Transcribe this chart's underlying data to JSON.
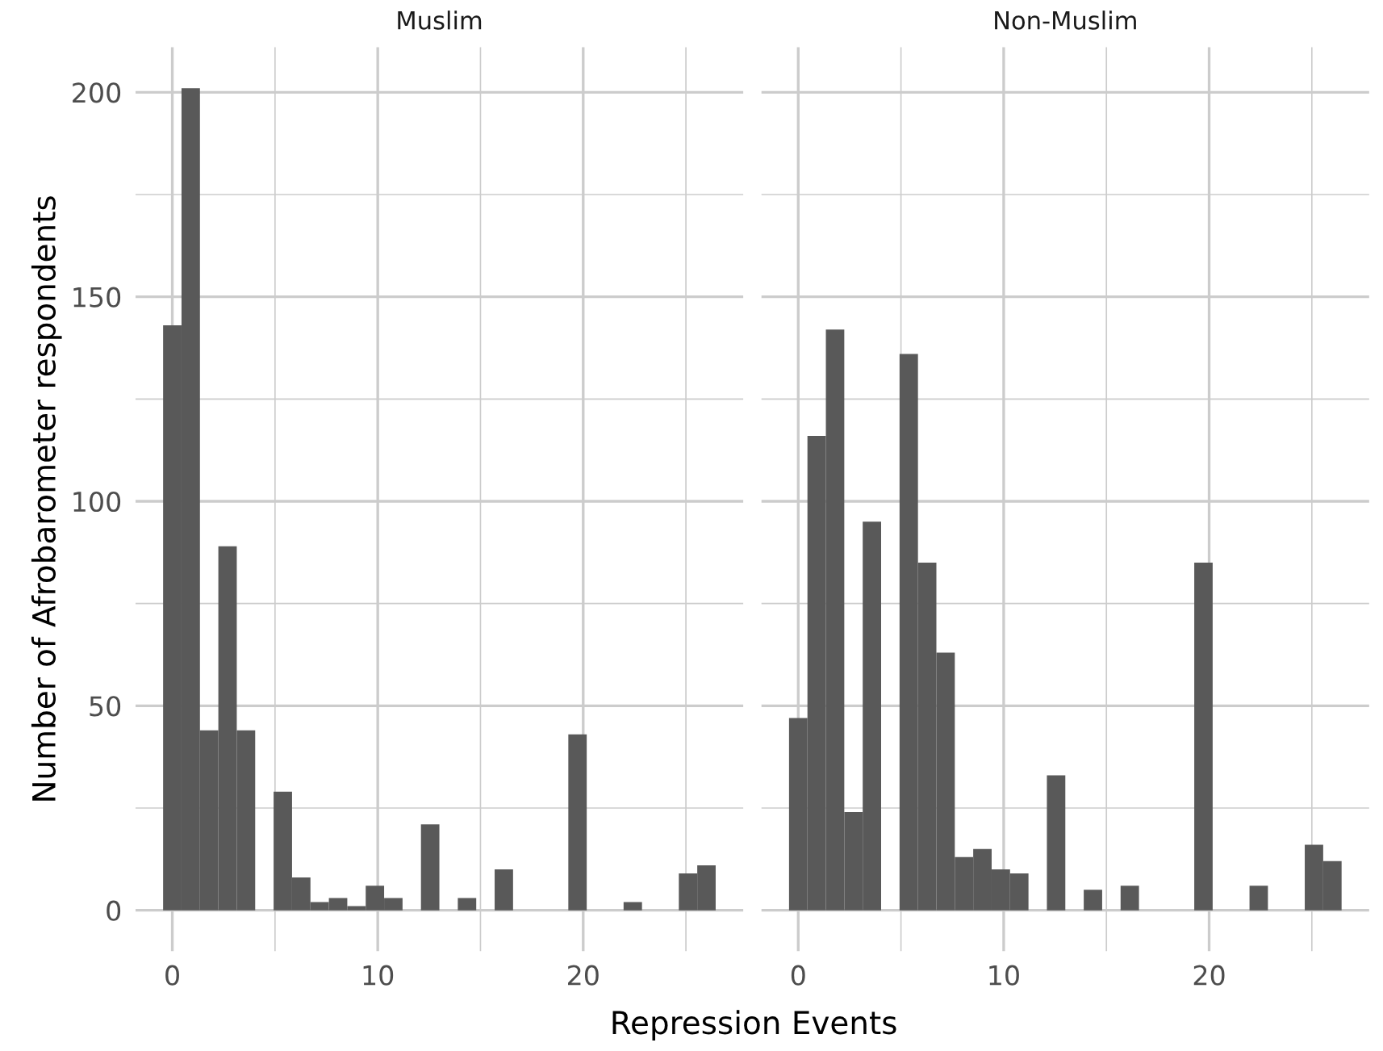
{
  "chart_data": [
    {
      "type": "histogram",
      "title": "Muslim",
      "xlabel": "Repression Events",
      "ylabel": "Number of Afrobarometer respondents",
      "color": "#595959",
      "bins": [
        -0.448,
        0.448,
        1.345,
        2.241,
        3.138,
        4.034,
        4.931,
        5.828,
        6.724,
        7.621,
        8.517,
        9.414,
        10.31,
        11.207,
        12.103,
        13.0,
        13.897,
        14.793,
        15.69,
        16.586,
        17.483,
        18.379,
        19.276,
        20.172,
        21.069,
        21.966,
        22.862,
        23.759,
        24.655,
        25.552,
        26.448
      ],
      "values": [
        143,
        201,
        44,
        89,
        44,
        0,
        29,
        8,
        2,
        3,
        1,
        6,
        3,
        0,
        21,
        0,
        3,
        0,
        10,
        0,
        0,
        0,
        43,
        0,
        0,
        2,
        0,
        0,
        9,
        11
      ],
      "xlim": [
        -1.79,
        27.79
      ],
      "ylim": [
        -10,
        211
      ],
      "xticks": [
        0,
        {
          "value": 5,
          "label": null
        },
        10,
        {
          "value": 15,
          "label": null
        },
        20,
        {
          "value": 25,
          "label": null
        }
      ],
      "yticks": [
        0,
        {
          "value": 25,
          "label": null
        },
        50,
        {
          "value": 75,
          "label": null
        },
        100,
        {
          "value": 125,
          "label": null
        },
        150,
        {
          "value": 175,
          "label": null
        },
        200
      ],
      "grid": true
    },
    {
      "type": "histogram",
      "title": "Non-Muslim",
      "color": "#595959",
      "bins": [
        -0.448,
        0.448,
        1.345,
        2.241,
        3.138,
        4.034,
        4.931,
        5.828,
        6.724,
        7.621,
        8.517,
        9.414,
        10.31,
        11.207,
        12.103,
        13.0,
        13.897,
        14.793,
        15.69,
        16.586,
        17.483,
        18.379,
        19.276,
        20.172,
        21.069,
        21.966,
        22.862,
        23.759,
        24.655,
        25.552,
        26.448
      ],
      "values": [
        47,
        116,
        142,
        24,
        95,
        0,
        136,
        85,
        63,
        13,
        15,
        10,
        9,
        0,
        33,
        0,
        5,
        0,
        6,
        0,
        0,
        0,
        85,
        0,
        0,
        6,
        0,
        0,
        16,
        12
      ],
      "xlim": [
        -1.79,
        27.79
      ],
      "ylim": [
        -10,
        211
      ],
      "xticks": [
        0,
        {
          "value": 5,
          "label": null
        },
        10,
        {
          "value": 15,
          "label": null
        },
        20,
        {
          "value": 25,
          "label": null
        }
      ],
      "yticks": [
        0,
        {
          "value": 25,
          "label": null
        },
        50,
        {
          "value": 75,
          "label": null
        },
        100,
        {
          "value": 125,
          "label": null
        },
        150,
        {
          "value": 175,
          "label": null
        },
        200
      ],
      "grid": true,
      "tick_labels": "x"
    }
  ]
}
